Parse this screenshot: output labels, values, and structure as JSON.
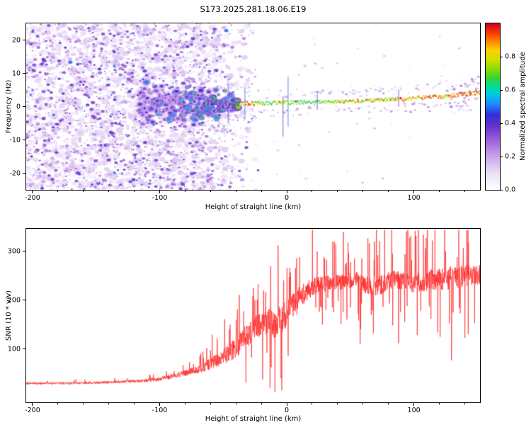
{
  "title": "S173.2025.281.18.06.E19",
  "colors": {
    "background": "#ffffff",
    "axis": "#000000",
    "snr_line": "#ff2222"
  },
  "colormap": {
    "stops": [
      [
        0.0,
        "#ffffff"
      ],
      [
        0.1,
        "#ece0f8"
      ],
      [
        0.2,
        "#c9a3ea"
      ],
      [
        0.3,
        "#9b5fd9"
      ],
      [
        0.38,
        "#6633cc"
      ],
      [
        0.45,
        "#2f2fd9"
      ],
      [
        0.52,
        "#1e90ff"
      ],
      [
        0.57,
        "#00c8e6"
      ],
      [
        0.62,
        "#00dc9b"
      ],
      [
        0.67,
        "#35d435"
      ],
      [
        0.73,
        "#90dc00"
      ],
      [
        0.79,
        "#d8e000"
      ],
      [
        0.84,
        "#ffd200"
      ],
      [
        0.89,
        "#ff8c00"
      ],
      [
        0.94,
        "#ff3c00"
      ],
      [
        1.0,
        "#cc0022"
      ]
    ]
  },
  "chart_data": [
    {
      "type": "heatmap",
      "title": "S173.2025.281.18.06.E19",
      "xlabel": "Height of straight line (km)",
      "ylabel": "Frequency (Hz)",
      "xlim": [
        -205,
        152
      ],
      "ylim": [
        -25,
        25
      ],
      "xticks": [
        -200,
        -100,
        0,
        100
      ],
      "yticks": [
        -20,
        -10,
        0,
        10,
        20
      ],
      "colorbar": {
        "label": "Normalized spectral amplitude",
        "ticks": [
          0.0,
          0.2,
          0.4,
          0.6,
          0.8
        ],
        "range": [
          0,
          1
        ]
      },
      "description": "Diffuse low-amplitude purple speckle noise fills all frequencies from -205 to about -30 km; a concentrated echo band near 0 Hz emerges around -110 km, chaotic and broad until about -40 km, then narrows to a thin bright green/yellow/red line whose frequency drifts from ~1 Hz at 0 km to ~4 Hz at 150 km.",
      "noise": {
        "count_core": 2800,
        "count_soft": 1300,
        "count_sparse": 45,
        "fade_start": -70,
        "fade_end": -22,
        "amp_range": [
          0.05,
          0.45
        ]
      },
      "signal_track": [
        [
          -115,
          0.8,
          5.5,
          0.42
        ],
        [
          -100,
          0.8,
          5.2,
          0.5
        ],
        [
          -85,
          0.4,
          4.8,
          0.55
        ],
        [
          -70,
          0.3,
          4.5,
          0.6
        ],
        [
          -55,
          0.5,
          3.8,
          0.62
        ],
        [
          -45,
          0.8,
          2.6,
          0.66
        ],
        [
          -36,
          1.0,
          1.8,
          0.74
        ],
        [
          -28,
          1.0,
          1.4,
          0.78
        ],
        [
          -18,
          1.0,
          1.2,
          0.7
        ],
        [
          -8,
          1.1,
          1.2,
          0.72
        ],
        [
          0,
          1.2,
          1.3,
          0.74
        ],
        [
          12,
          1.3,
          1.1,
          0.7
        ],
        [
          25,
          1.4,
          1.0,
          0.72
        ],
        [
          40,
          1.5,
          1.0,
          0.74
        ],
        [
          55,
          1.7,
          1.1,
          0.78
        ],
        [
          70,
          1.9,
          1.1,
          0.78
        ],
        [
          85,
          2.2,
          1.2,
          0.8
        ],
        [
          100,
          2.5,
          1.2,
          0.82
        ],
        [
          115,
          2.9,
          1.3,
          0.84
        ],
        [
          130,
          3.3,
          1.4,
          0.87
        ],
        [
          142,
          3.8,
          1.5,
          0.9
        ],
        [
          152,
          4.3,
          1.6,
          0.92
        ]
      ],
      "streaks": [
        [
          -46,
          -5,
          7,
          0.45
        ],
        [
          -33,
          -4,
          6,
          0.5
        ],
        [
          -3,
          -9,
          3,
          0.38
        ],
        [
          1,
          -6,
          9,
          0.5
        ],
        [
          24,
          -1,
          4,
          0.4
        ],
        [
          88,
          0,
          5,
          0.42
        ]
      ],
      "red_dash_prob": [
        [
          -42,
          0.32
        ],
        [
          -26,
          0.32
        ],
        [
          -20,
          0.07
        ],
        [
          32,
          0.08
        ],
        [
          45,
          0.2
        ],
        [
          95,
          0.28
        ],
        [
          152,
          0.38
        ]
      ]
    },
    {
      "type": "line",
      "xlabel": "Height of straight line (km)",
      "ylabel": "SNR (10 * v/v)",
      "xlim": [
        -205,
        152
      ],
      "ylim": [
        -9,
        346
      ],
      "xticks": [
        -200,
        -100,
        0,
        100
      ],
      "yticks": [
        100,
        200,
        300
      ],
      "color": "#ff2222",
      "envelope": [
        [
          -205,
          30,
          9
        ],
        [
          -170,
          30,
          9
        ],
        [
          -140,
          32,
          10
        ],
        [
          -115,
          35,
          12
        ],
        [
          -100,
          39,
          15
        ],
        [
          -88,
          45,
          18
        ],
        [
          -78,
          52,
          24
        ],
        [
          -68,
          60,
          32
        ],
        [
          -58,
          72,
          45
        ],
        [
          -50,
          85,
          60
        ],
        [
          -43,
          98,
          75
        ],
        [
          -36,
          115,
          85
        ],
        [
          -29,
          132,
          92
        ],
        [
          -22,
          148,
          95
        ],
        [
          -15,
          158,
          95
        ],
        [
          -9,
          150,
          105
        ],
        [
          -4,
          162,
          110
        ],
        [
          2,
          180,
          115
        ],
        [
          8,
          198,
          100
        ],
        [
          15,
          218,
          80
        ],
        [
          24,
          232,
          62
        ],
        [
          38,
          236,
          58
        ],
        [
          55,
          240,
          64
        ],
        [
          70,
          228,
          80
        ],
        [
          85,
          244,
          70
        ],
        [
          100,
          236,
          76
        ],
        [
          115,
          242,
          82
        ],
        [
          130,
          246,
          86
        ],
        [
          142,
          250,
          84
        ],
        [
          152,
          252,
          80
        ]
      ]
    }
  ]
}
